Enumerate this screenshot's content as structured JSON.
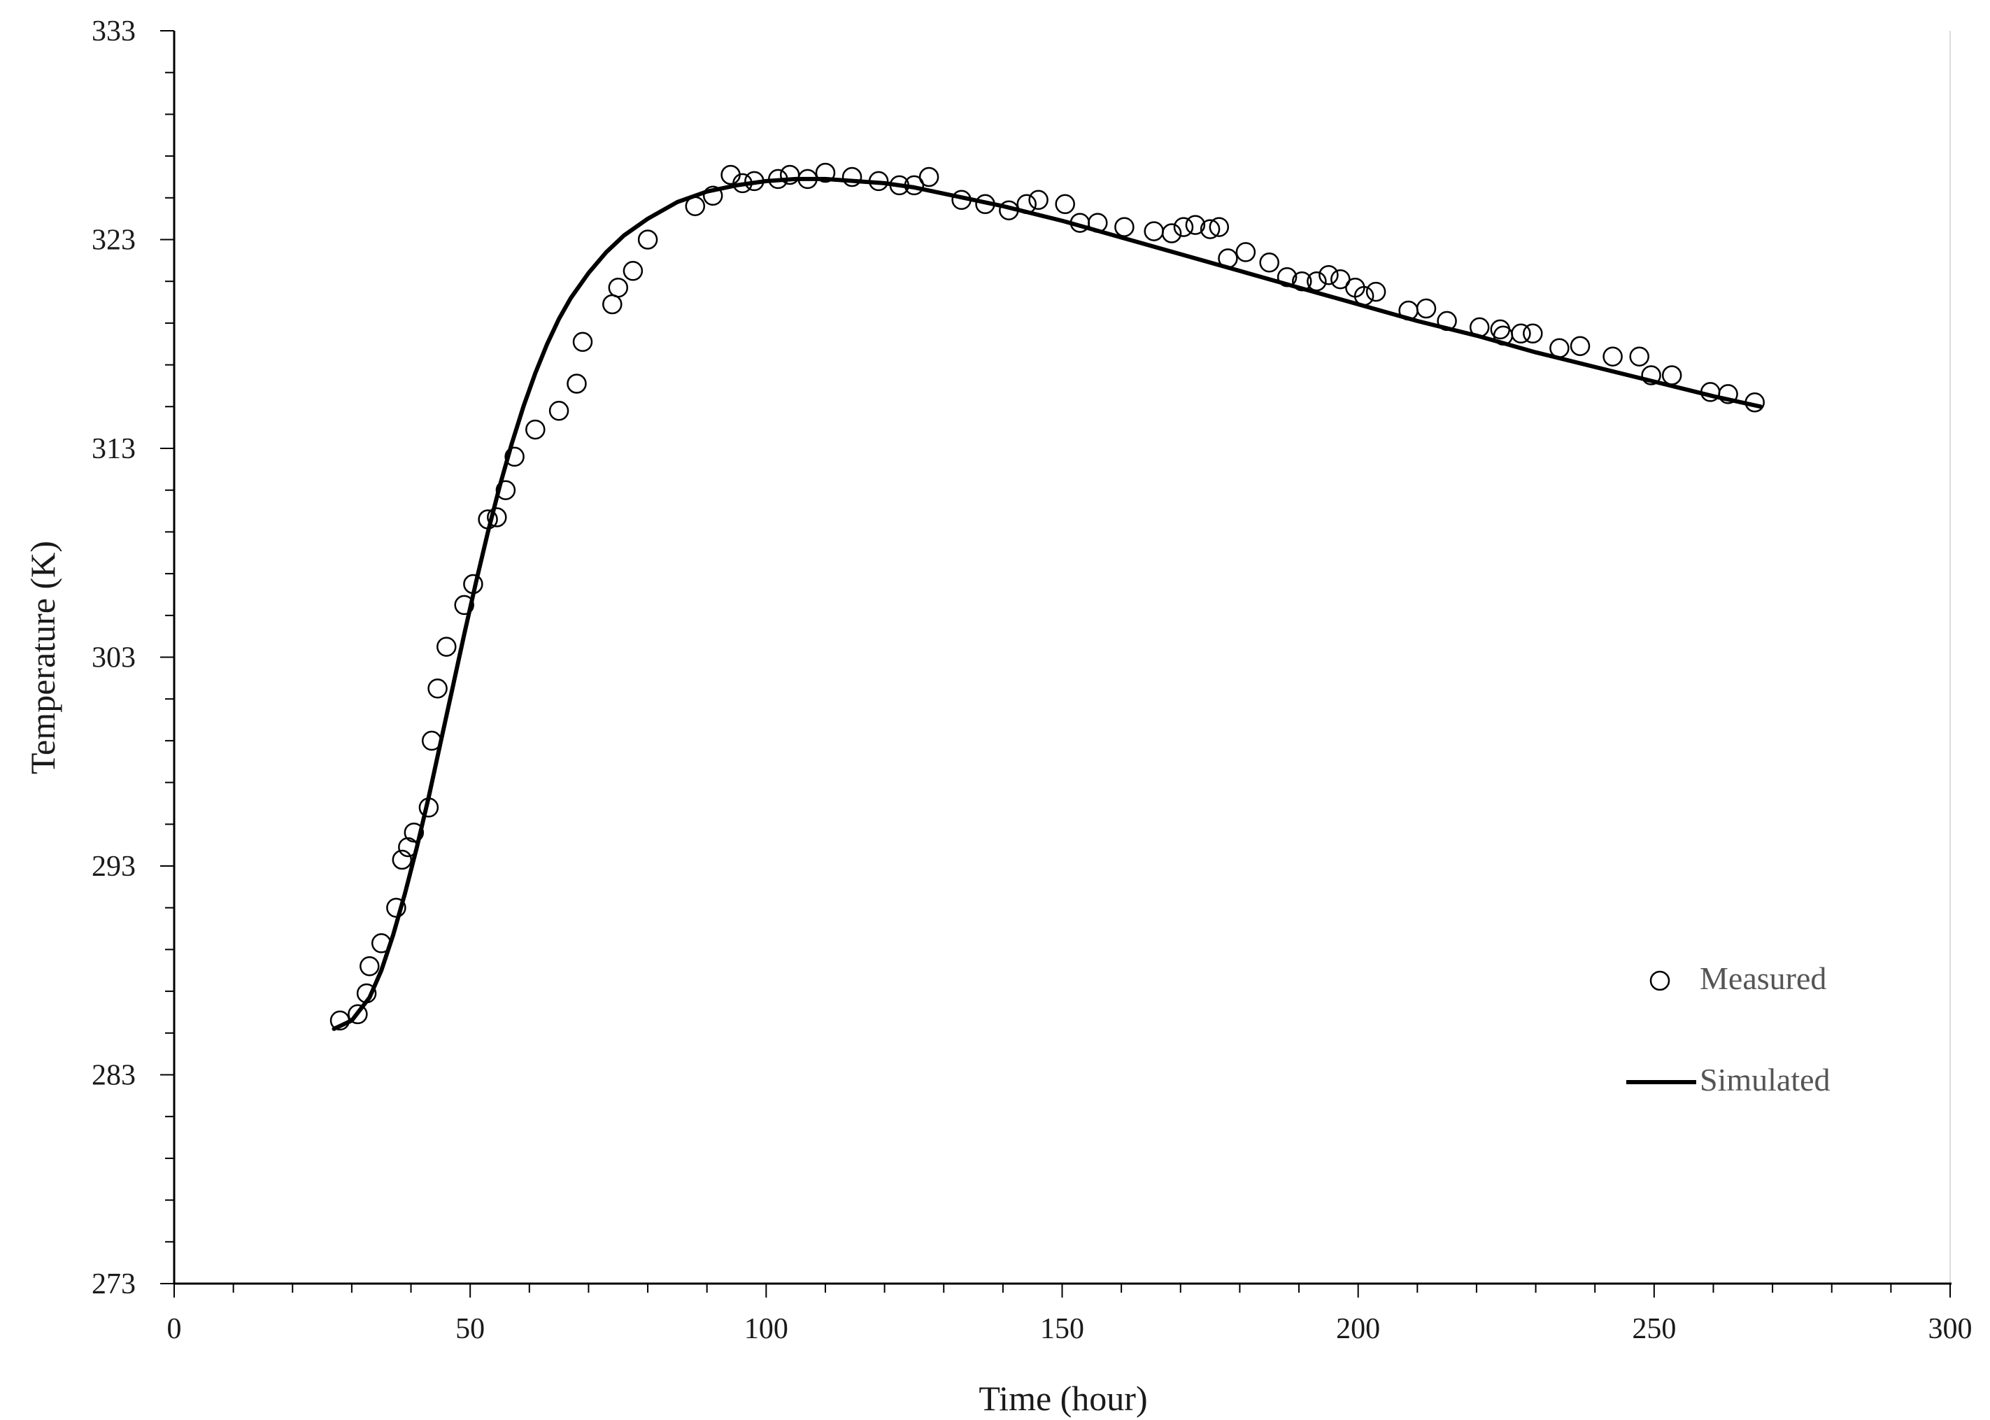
{
  "chart_data": {
    "type": "scatter",
    "title": "",
    "xlabel": "Time (hour)",
    "ylabel": "Temperature (K)",
    "xlim": [
      0,
      300
    ],
    "ylim": [
      273,
      333
    ],
    "x_ticks": [
      0,
      50,
      100,
      150,
      200,
      250,
      300
    ],
    "x_tick_labels": [
      "0",
      "50",
      "100",
      "150",
      "200",
      "250",
      "300"
    ],
    "x_minor_step": 10,
    "y_ticks": [
      273,
      283,
      293,
      303,
      313,
      323,
      333
    ],
    "y_tick_labels": [
      "273",
      "283",
      "293",
      "303",
      "313",
      "323",
      "333"
    ],
    "y_minor_step": 2,
    "grid": false,
    "legend_position": "bottom-right",
    "legend": [
      {
        "label": "Measured",
        "marker": "open-circle"
      },
      {
        "label": "Simulated",
        "marker": "line"
      }
    ],
    "series": [
      {
        "name": "Measured",
        "style": "markers",
        "color": "#000000",
        "x": [
          28,
          31,
          32.5,
          33,
          35,
          37.5,
          38.5,
          39.5,
          40.5,
          43,
          43.5,
          44.5,
          46,
          49,
          50.5,
          53,
          54.5,
          56,
          57.5,
          61,
          65,
          68,
          69,
          74,
          75,
          77.5,
          80,
          88,
          91,
          94,
          96,
          98,
          102,
          104,
          107,
          110,
          114.5,
          119,
          122.5,
          125,
          127.5,
          133,
          137,
          141,
          144,
          146,
          150.5,
          153,
          156,
          160.5,
          165.5,
          168.5,
          170.5,
          172.5,
          175,
          176.5,
          178,
          181,
          185,
          188,
          190.5,
          193,
          195,
          197,
          199.5,
          201,
          203,
          208.5,
          211.5,
          215,
          220.5,
          224,
          224.5,
          227.5,
          229.5,
          234,
          237.5,
          243,
          247.5,
          249.5,
          253,
          259.5,
          262.5,
          267
        ],
        "y": [
          285.6,
          285.9,
          286.9,
          288.2,
          289.3,
          291,
          293.3,
          293.9,
          294.6,
          295.8,
          299,
          301.5,
          303.5,
          305.5,
          306.5,
          309.6,
          309.7,
          311,
          312.6,
          313.9,
          314.8,
          316.1,
          318.1,
          319.9,
          320.7,
          321.5,
          323,
          324.6,
          325.1,
          326.1,
          325.7,
          325.8,
          325.9,
          326.1,
          325.9,
          326.2,
          326,
          325.8,
          325.6,
          325.6,
          326,
          324.9,
          324.7,
          324.4,
          324.7,
          324.9,
          324.7,
          323.8,
          323.8,
          323.6,
          323.4,
          323.3,
          323.6,
          323.7,
          323.5,
          323.6,
          322.1,
          322.4,
          321.9,
          321.2,
          321,
          321,
          321.3,
          321.1,
          320.7,
          320.3,
          320.5,
          319.6,
          319.7,
          319.1,
          318.8,
          318.7,
          318.4,
          318.5,
          318.5,
          317.8,
          317.9,
          317.4,
          317.4,
          316.5,
          316.5,
          315.7,
          315.6,
          315.2
        ]
      },
      {
        "name": "Simulated",
        "style": "line",
        "color": "#000000",
        "x": [
          27,
          30,
          33,
          35,
          37,
          39,
          41,
          43,
          45,
          47,
          49,
          51,
          53,
          55,
          57,
          59,
          61,
          63,
          65,
          67,
          70,
          73,
          76,
          80,
          85,
          90,
          95,
          100,
          105,
          110,
          115,
          120,
          125,
          130,
          140,
          150,
          160,
          170,
          180,
          190,
          200,
          210,
          220,
          230,
          240,
          250,
          260,
          268
        ],
        "y": [
          285.2,
          285.6,
          286.7,
          288,
          289.7,
          291.7,
          293.9,
          296.3,
          298.9,
          301.5,
          304.1,
          306.6,
          309,
          311.2,
          313.2,
          315,
          316.6,
          318,
          319.2,
          320.2,
          321.4,
          322.4,
          323.2,
          324,
          324.8,
          325.3,
          325.6,
          325.8,
          325.9,
          325.9,
          325.8,
          325.7,
          325.5,
          325.2,
          324.6,
          323.9,
          323.1,
          322.3,
          321.5,
          320.7,
          319.9,
          319.1,
          318.4,
          317.6,
          316.9,
          316.2,
          315.5,
          315
        ]
      }
    ]
  }
}
